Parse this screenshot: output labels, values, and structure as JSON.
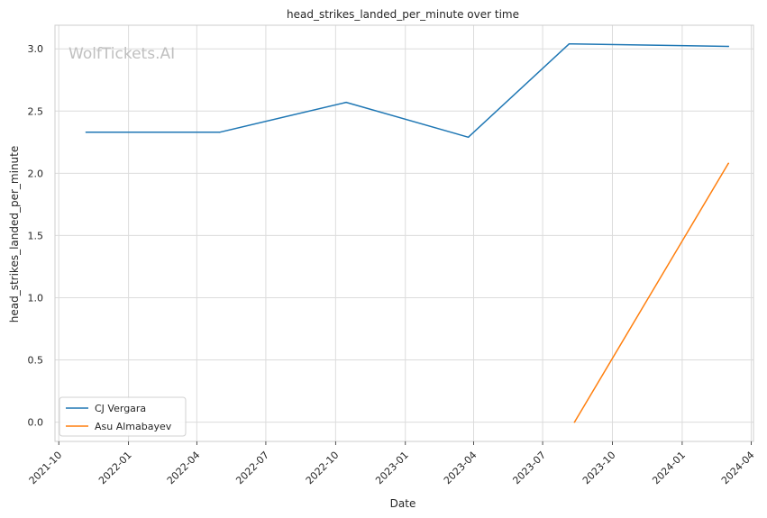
{
  "chart_data": {
    "type": "line",
    "title": "head_strikes_landed_per_minute over time",
    "xlabel": "Date",
    "ylabel": "head_strikes_landed_per_minute",
    "watermark": "WolfTickets.AI",
    "x_ticks": [
      "2021-10",
      "2022-01",
      "2022-04",
      "2022-07",
      "2022-10",
      "2023-01",
      "2023-04",
      "2023-07",
      "2023-10",
      "2024-01",
      "2024-04"
    ],
    "y_ticks": [
      "0.0",
      "0.5",
      "1.0",
      "1.5",
      "2.0",
      "2.5",
      "3.0"
    ],
    "xlim": [
      "2021-09-26",
      "2024-04-04"
    ],
    "ylim": [
      -0.155,
      3.19
    ],
    "grid": true,
    "legend_position": "lower-left",
    "series": [
      {
        "name": "CJ Vergara",
        "color": "#1f77b4",
        "points": [
          {
            "x": "2021-11-06",
            "y": 2.33
          },
          {
            "x": "2022-05-01",
            "y": 2.33
          },
          {
            "x": "2022-10-15",
            "y": 2.57
          },
          {
            "x": "2023-03-25",
            "y": 2.29
          },
          {
            "x": "2023-08-05",
            "y": 3.04
          },
          {
            "x": "2024-03-02",
            "y": 3.02
          }
        ]
      },
      {
        "name": "Asu Almabayev",
        "color": "#ff7f0e",
        "points": [
          {
            "x": "2023-08-12",
            "y": 0.0
          },
          {
            "x": "2024-03-02",
            "y": 2.08
          }
        ]
      }
    ]
  }
}
